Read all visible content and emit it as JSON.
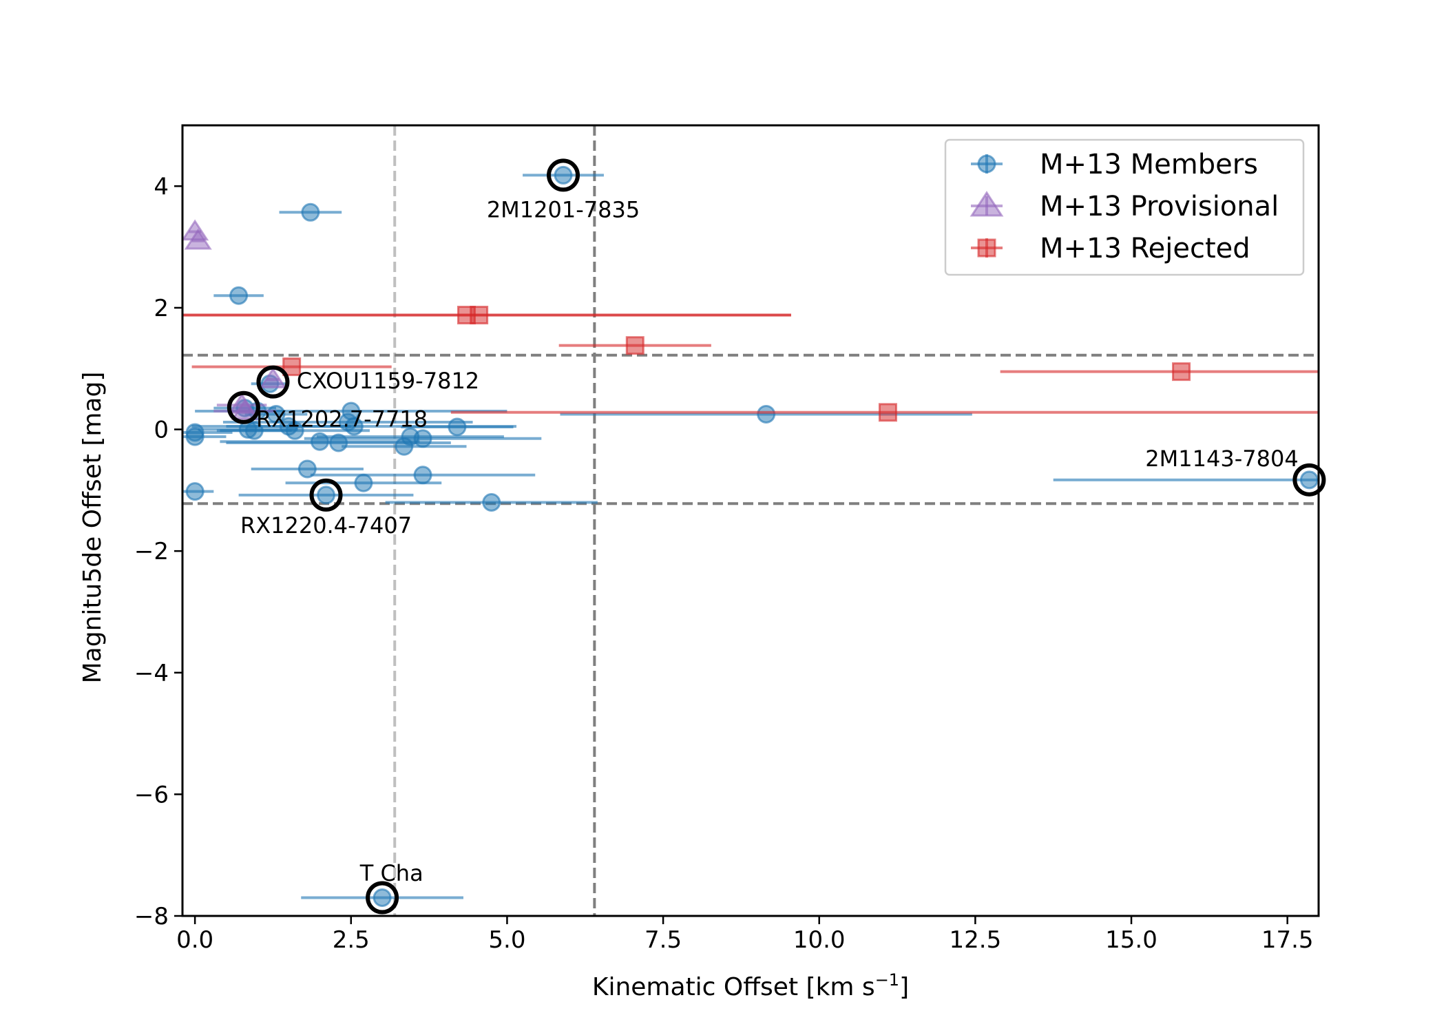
{
  "chart_data": {
    "type": "scatter",
    "title": "",
    "xlabel": "Kinematic Offset [km s",
    "xlabel_sup": "−1",
    "xlabel_close": "]",
    "ylabel": "Magnitu5de Offset [mag]",
    "xlim": [
      -0.2,
      18.0
    ],
    "ylim": [
      -8.0,
      5.0
    ],
    "x_ticks": [
      0.0,
      2.5,
      5.0,
      7.5,
      10.0,
      12.5,
      15.0,
      17.5
    ],
    "x_tick_labels": [
      "0.0",
      "2.5",
      "5.0",
      "7.5",
      "10.0",
      "12.5",
      "15.0",
      "17.5"
    ],
    "y_ticks": [
      -8,
      -6,
      -4,
      -2,
      0,
      2,
      4
    ],
    "y_tick_labels": [
      "−8",
      "−6",
      "−4",
      "−2",
      "0",
      "2",
      "4"
    ],
    "grid": false,
    "legend_position": "upper-right",
    "colors": {
      "members": "#1f77b4",
      "provisional": "#9467bd",
      "rejected": "#d62728",
      "ref_line_dark": "#7f7f7f",
      "ref_line_light": "#bfbfbf",
      "highlight": "#000000"
    },
    "reference_lines": {
      "vertical_light_x": 3.2,
      "vertical_dark_x": 6.4,
      "horizontal_y": [
        1.22,
        -1.22
      ]
    },
    "series": [
      {
        "name": "M+13 Members",
        "marker": "circle",
        "points": [
          {
            "x": 5.9,
            "y": 4.18,
            "xerr": 0.65
          },
          {
            "x": 1.85,
            "y": 3.57,
            "xerr": 0.5
          },
          {
            "x": 0.7,
            "y": 2.2,
            "xerr": 0.4
          },
          {
            "x": 1.2,
            "y": 0.75,
            "xerr": 0.3
          },
          {
            "x": 0.8,
            "y": 0.35,
            "xerr": 0.5
          },
          {
            "x": 1.0,
            "y": 0.3,
            "xerr": 0.4
          },
          {
            "x": 1.3,
            "y": 0.25,
            "xerr": 0.5
          },
          {
            "x": 2.5,
            "y": 0.3,
            "xerr": 2.5
          },
          {
            "x": 2.45,
            "y": 0.12,
            "xerr": 2.0
          },
          {
            "x": 2.55,
            "y": 0.05,
            "xerr": 2.6
          },
          {
            "x": 4.2,
            "y": 0.04,
            "xerr": 0.9
          },
          {
            "x": 0.0,
            "y": -0.05,
            "xerr": 0.6
          },
          {
            "x": 0.0,
            "y": -0.12,
            "xerr": 0.5
          },
          {
            "x": 0.85,
            "y": 0.0,
            "xerr": 0.8
          },
          {
            "x": 0.95,
            "y": -0.02,
            "xerr": 0.6
          },
          {
            "x": 1.5,
            "y": 0.05,
            "xerr": 1.0
          },
          {
            "x": 1.6,
            "y": -0.02,
            "xerr": 1.2
          },
          {
            "x": 2.0,
            "y": -0.2,
            "xerr": 1.6
          },
          {
            "x": 2.3,
            "y": -0.22,
            "xerr": 1.8
          },
          {
            "x": 3.45,
            "y": -0.12,
            "xerr": 1.5
          },
          {
            "x": 3.65,
            "y": -0.15,
            "xerr": 1.9
          },
          {
            "x": 3.35,
            "y": -0.28,
            "xerr": 1.0
          },
          {
            "x": 1.8,
            "y": -0.65,
            "xerr": 0.9
          },
          {
            "x": 3.65,
            "y": -0.75,
            "xerr": 1.8
          },
          {
            "x": 2.7,
            "y": -0.88,
            "xerr": 1.25
          },
          {
            "x": 2.1,
            "y": -1.08,
            "xerr": 1.4
          },
          {
            "x": 0.0,
            "y": -1.02,
            "xerr": 0.3
          },
          {
            "x": 4.75,
            "y": -1.2,
            "xerr": 1.7
          },
          {
            "x": 9.15,
            "y": 0.25,
            "xerr": 3.3
          },
          {
            "x": 17.85,
            "y": -0.83,
            "xerr": 4.1
          },
          {
            "x": 3.0,
            "y": -7.7,
            "xerr": 1.3
          }
        ]
      },
      {
        "name": "M+13 Provisional",
        "marker": "triangle",
        "points": [
          {
            "x": 0.0,
            "y": 3.25,
            "xerr": 0.1
          },
          {
            "x": 0.05,
            "y": 3.1,
            "xerr": 0.1
          },
          {
            "x": 1.25,
            "y": 0.82,
            "xerr": 0.1
          },
          {
            "x": 0.75,
            "y": 0.4,
            "xerr": 0.4
          },
          {
            "x": 0.8,
            "y": 0.3,
            "xerr": 0.5
          }
        ]
      },
      {
        "name": "M+13 Rejected",
        "marker": "square",
        "points": [
          {
            "x": 4.35,
            "y": 1.88,
            "xerr": 5.2
          },
          {
            "x": 4.55,
            "y": 1.88,
            "xerr": 5.0
          },
          {
            "x": 7.05,
            "y": 1.38,
            "xerr": 1.22
          },
          {
            "x": 1.55,
            "y": 1.03,
            "xerr": 1.6
          },
          {
            "x": 15.8,
            "y": 0.95,
            "xerr": 2.9
          },
          {
            "x": 11.1,
            "y": 0.28,
            "xerr": 7.0
          }
        ]
      }
    ],
    "highlighted_sources": [
      {
        "name": "2M1201-7835",
        "x": 5.9,
        "y": 4.18,
        "label_dx": 0.0,
        "label_dy": -0.57,
        "anchor": "middle"
      },
      {
        "name": "CXOU1159-7812",
        "x": 1.25,
        "y": 0.78,
        "label_dx": 0.38,
        "label_dy": 0.02,
        "anchor": "start"
      },
      {
        "name": "RX1202.7-7718",
        "x": 0.78,
        "y": 0.36,
        "label_dx": 0.2,
        "label_dy": -0.19,
        "anchor": "start"
      },
      {
        "name": "RX1220.4-7407",
        "x": 2.1,
        "y": -1.08,
        "label_dx": 0.0,
        "label_dy": -0.5,
        "anchor": "middle"
      },
      {
        "name": "2M1143-7804",
        "x": 17.85,
        "y": -0.83,
        "label_dx": -1.4,
        "label_dy": 0.35,
        "anchor": "middle"
      },
      {
        "name": "T Cha",
        "x": 3.0,
        "y": -7.7,
        "label_dx": 0.15,
        "label_dy": 0.4,
        "anchor": "middle"
      }
    ]
  }
}
